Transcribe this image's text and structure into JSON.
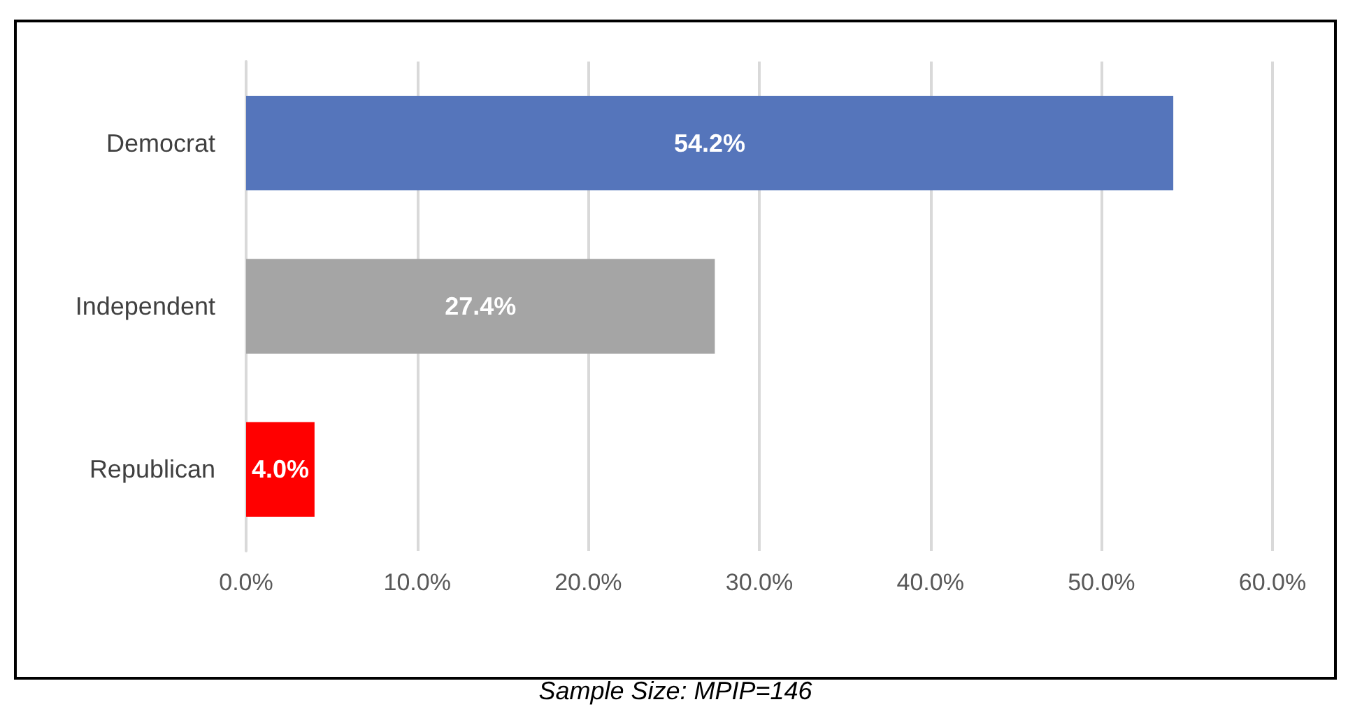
{
  "chart_data": {
    "type": "bar",
    "orientation": "horizontal",
    "categories": [
      "Democrat",
      "Independent",
      "Republican"
    ],
    "values": [
      54.2,
      27.4,
      4.0
    ],
    "colors": [
      "#5575bb",
      "#a5a5a5",
      "#ff0000"
    ],
    "value_labels": [
      "54.2%",
      "27.4%",
      "4.0%"
    ],
    "xlim": [
      0,
      60
    ],
    "xticks": [
      {
        "value": 0,
        "label": "0.0%"
      },
      {
        "value": 10,
        "label": "10.0%"
      },
      {
        "value": 20,
        "label": "20.0%"
      },
      {
        "value": 30,
        "label": "30.0%"
      },
      {
        "value": 40,
        "label": "40.0%"
      },
      {
        "value": 50,
        "label": "50.0%"
      },
      {
        "value": 60,
        "label": "60.0%"
      }
    ],
    "grid": "x",
    "annotations": [
      "Sample Size: MPIP=146"
    ]
  }
}
